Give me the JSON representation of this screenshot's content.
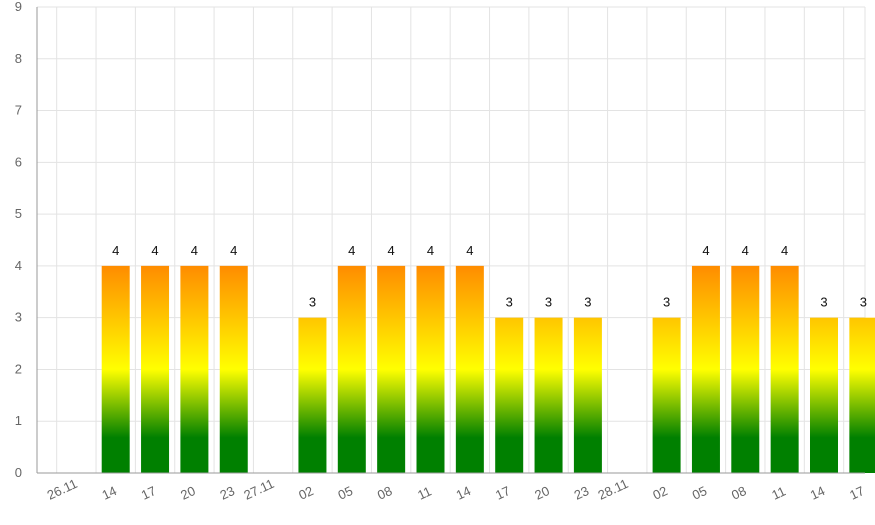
{
  "chart_data": {
    "type": "bar",
    "title": "",
    "xlabel": "",
    "ylabel": "",
    "ylim": [
      0,
      9
    ],
    "yticks": [
      0,
      1,
      2,
      3,
      4,
      5,
      6,
      7,
      8,
      9
    ],
    "grid": true,
    "categories": [
      "26.11",
      "14",
      "17",
      "20",
      "23",
      "27.11",
      "02",
      "05",
      "08",
      "11",
      "14",
      "17",
      "20",
      "23",
      "28.11",
      "02",
      "05",
      "08",
      "11",
      "14",
      "17"
    ],
    "values": [
      null,
      4,
      4,
      4,
      4,
      null,
      3,
      4,
      4,
      4,
      4,
      3,
      3,
      3,
      null,
      3,
      4,
      4,
      4,
      3,
      3
    ],
    "data_labels": [
      "",
      "4",
      "4",
      "4",
      "4",
      "",
      "3",
      "4",
      "4",
      "4",
      "4",
      "3",
      "3",
      "3",
      "",
      "3",
      "4",
      "4",
      "4",
      "3",
      "3"
    ],
    "colors": {
      "gradient_bottom": "#008000",
      "gradient_mid": "#ffff00",
      "gradient_top": "#ff8c00",
      "grid": "#e3e3e3",
      "axis": "#9a9a9a",
      "tick_text": "#666666",
      "label_text": "#111111"
    }
  }
}
